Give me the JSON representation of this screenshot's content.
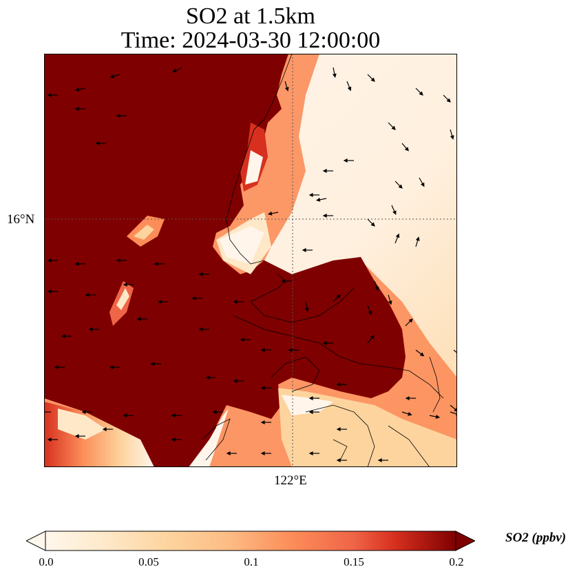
{
  "title": {
    "line1": "SO2 at 1.5km",
    "line2": "Time: 2024-03-30 12:00:00"
  },
  "map": {
    "lat_label": "16°N",
    "lon_label": "122°E",
    "gridlines": "dotted",
    "field_colors": {
      "low": "#fff5eb",
      "mid": "#fdae6b",
      "high": "#7f0000"
    }
  },
  "colorbar": {
    "label": "SO2 (ppbv)",
    "ticks": [
      "0.0",
      "0.05",
      "0.1",
      "0.15",
      "0.2"
    ],
    "range": [
      0.0,
      0.2
    ],
    "colormap": "OrRd",
    "extend": "both"
  }
}
